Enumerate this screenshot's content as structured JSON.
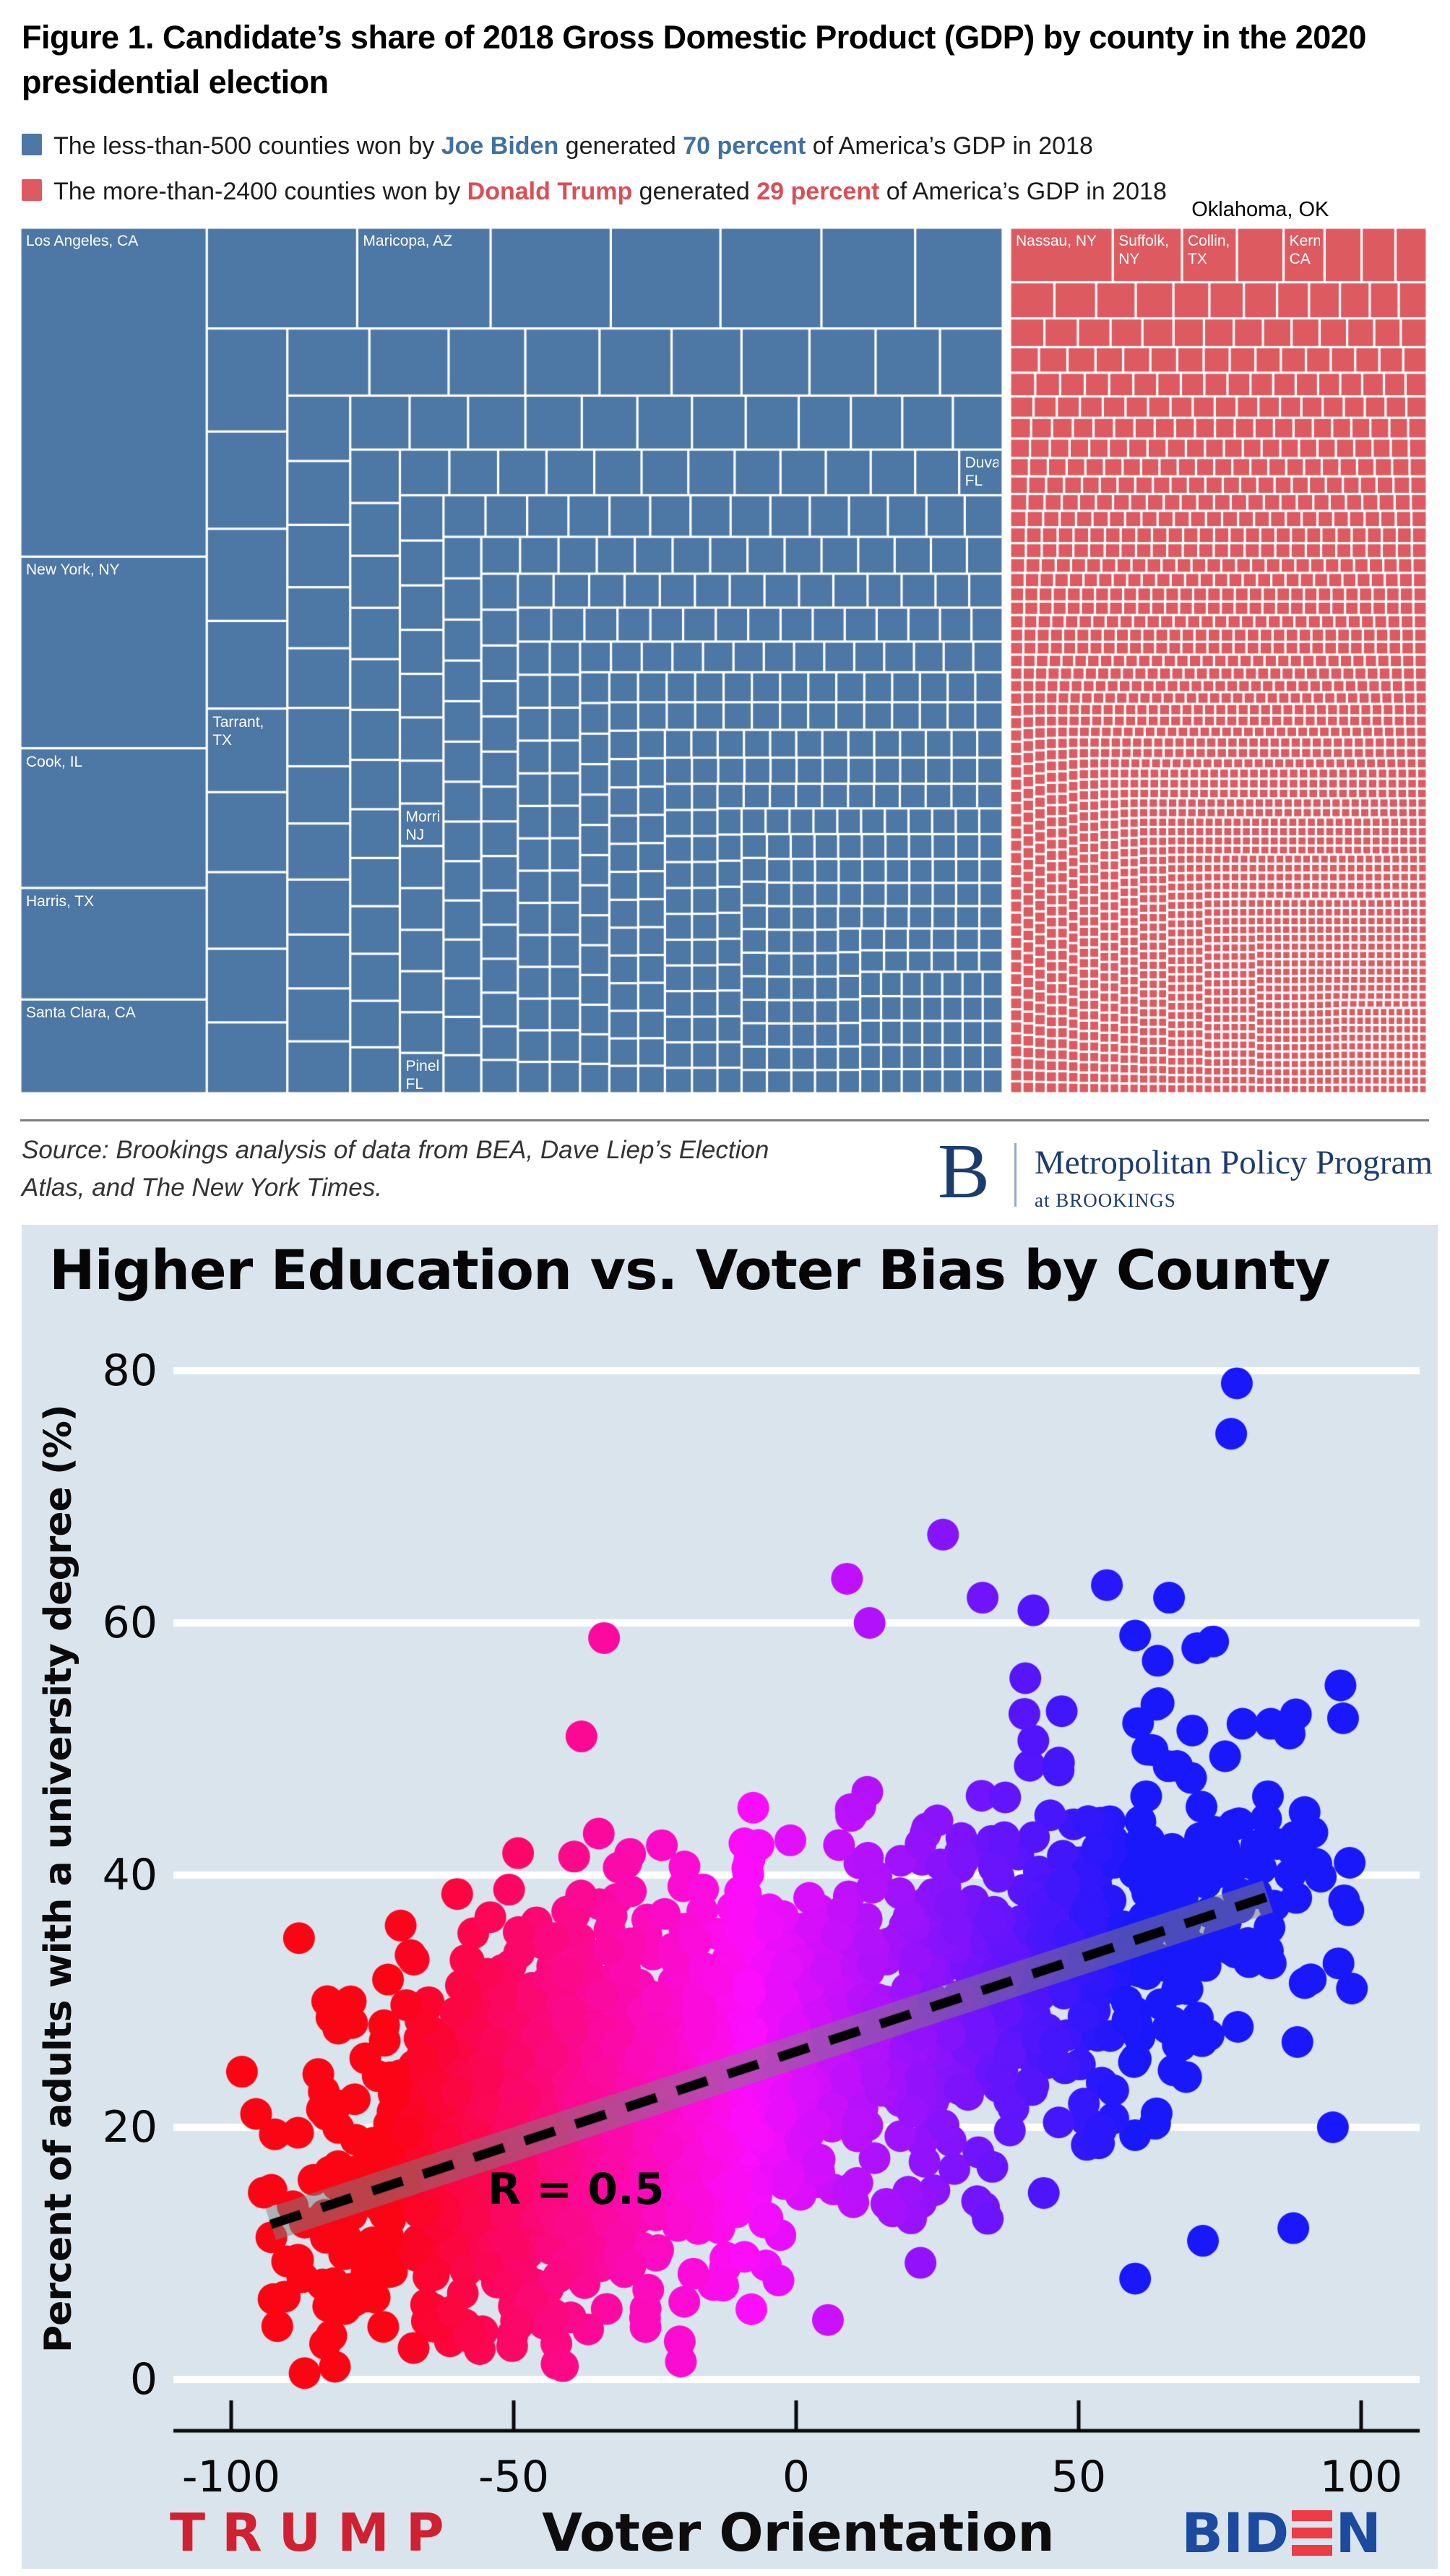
{
  "fig1": {
    "title": {
      "line1": "Figure 1. Candidate’s share of 2018 Gross Domestic Product (GDP) by county in the 2020",
      "line2": "presidential election"
    },
    "legend": [
      {
        "swatch_color": "#4d77a4",
        "prefix": "The less-than-500 counties won by ",
        "candidate": "Joe Biden",
        "middle": " generated ",
        "stat": "70 percent",
        "suffix": " of America’s GDP in 2018"
      },
      {
        "swatch_color": "#dd5a60",
        "prefix": "The more-than-2400 counties won by ",
        "candidate": "Donald Trump",
        "middle": " generated ",
        "stat": "29 percent",
        "suffix": " of America’s GDP in 2018"
      }
    ],
    "source": {
      "line1": "Source: Brookings analysis of data from BEA, Dave Liep’s Election",
      "line2": "Atlas, and The New York Times."
    },
    "logo": {
      "b": "B",
      "program": "Metropolitan Policy Program",
      "sub_prefix": "at ",
      "sub": "BROOKINGS"
    }
  },
  "scatter_text": {
    "title": "Higher Education vs. Voter Bias by County",
    "ylabel": "Percent of adults with a university degree (%)",
    "xlabel": "Voter Orientation",
    "left_label": "TRUMP",
    "right_label": "BIDEN",
    "r_annotation": "R = 0.5"
  },
  "chart_data": [
    {
      "type": "treemap",
      "title": "Candidate's share of 2018 GDP by county in the 2020 presidential election",
      "groups": [
        {
          "name": "Counties won by Joe Biden",
          "share_of_us_gdp_percent": 70,
          "county_count_label": "less than 500",
          "color": "#4d77a4",
          "n_cells": 500,
          "size_power_law_exponent": 0.78,
          "labeled_counties": [
            {
              "label": "Los Angeles, CA",
              "rank": 0
            },
            {
              "label": "New York, NY",
              "rank": 1
            },
            {
              "label": "Cook, IL",
              "rank": 2
            },
            {
              "label": "Harris, TX",
              "rank": 3
            },
            {
              "label": "Santa Clara, CA",
              "rank": 4
            },
            {
              "label": "Maricopa, AZ",
              "fx": 0.45,
              "fy": 0.02
            },
            {
              "label": "Tarrant, TX",
              "fx": 0.22,
              "fy": 0.585
            },
            {
              "label": "Morris, NJ",
              "fx": 0.42,
              "fy": 0.705
            },
            {
              "label": "Pinellas, FL",
              "fx": 0.42,
              "fy": 0.955
            },
            {
              "label": "Duval, FL",
              "fx": 0.975,
              "fy": 0.28
            }
          ]
        },
        {
          "name": "Counties won by Donald Trump",
          "share_of_us_gdp_percent": 29,
          "county_count_label": "more than 2400",
          "color": "#dd5a60",
          "n_cells": 2400,
          "size_power_law_exponent": 0.57,
          "labeled_counties": [
            {
              "label": "Nassau, NY",
              "rank": 0
            },
            {
              "label": "Suffolk, NY",
              "rank": 1
            },
            {
              "label": "Collin, TX",
              "rank": 2
            },
            {
              "label": "Kern, CA",
              "rank": 4
            }
          ],
          "callout": {
            "label": "Oklahoma, OK",
            "rank": 3
          }
        }
      ]
    },
    {
      "type": "scatter",
      "title": "Higher Education vs. Voter Bias by County",
      "xlabel": "Voter Orientation",
      "ylabel": "Percent of adults with a university degree (%)",
      "xlim": [
        -110,
        110
      ],
      "ylim": [
        0,
        80
      ],
      "xticks": [
        -100,
        -50,
        0,
        50,
        100
      ],
      "yticks": [
        0,
        20,
        40,
        60,
        80
      ],
      "grid": "horizontal-white",
      "axis_endpoint_labels": {
        "left": "TRUMP",
        "right": "BIDEN"
      },
      "annotation": {
        "text": "R = 0.5",
        "x": -52,
        "y": 15
      },
      "trend_line": {
        "x0": -93,
        "y0": 12.3,
        "x1": 83.5,
        "y1": 38.3,
        "style": "black-dashed",
        "band": "gray"
      },
      "correlation_r": 0.5,
      "color_scale": {
        "rule": "hue 356->240 over x -72..60",
        "left": "red",
        "middle": "magenta-purple",
        "right": "blue"
      },
      "point_radius_px": 22,
      "n_points": 1900,
      "seed": 42,
      "generator": {
        "x_mixture": [
          {
            "weight": 0.48,
            "mean": -45,
            "sd": 20
          },
          {
            "weight": 0.27,
            "mean": -5,
            "sd": 22
          },
          {
            "weight": 0.25,
            "mean": 42,
            "sd": 28
          }
        ],
        "y_model": {
          "intercept": 26.4,
          "slope": 0.146,
          "noise_sd": 7.4
        },
        "x_clamp": [
          -99,
          99
        ],
        "y_clamp": [
          1,
          68
        ]
      },
      "extra_points": [
        [
          78,
          79
        ],
        [
          77,
          75
        ],
        [
          26,
          67
        ],
        [
          9,
          63.5
        ],
        [
          13,
          60
        ],
        [
          33,
          62
        ],
        [
          42,
          61
        ],
        [
          55,
          63
        ],
        [
          60,
          59
        ],
        [
          66,
          62
        ],
        [
          71,
          58
        ],
        [
          64,
          57
        ],
        [
          79,
          52
        ],
        [
          84,
          52
        ],
        [
          47,
          53
        ],
        [
          90,
          45
        ],
        [
          96,
          33
        ],
        [
          84,
          33
        ],
        [
          97,
          38
        ],
        [
          -34,
          58.8
        ],
        [
          -38,
          51
        ],
        [
          -43,
          35
        ],
        [
          -88,
          35
        ],
        [
          -83,
          30
        ],
        [
          -70,
          36
        ],
        [
          -87,
          0.5
        ],
        [
          95,
          20
        ],
        [
          88,
          12
        ],
        [
          72,
          11
        ],
        [
          60,
          8
        ],
        [
          -60,
          38.5
        ]
      ]
    }
  ]
}
